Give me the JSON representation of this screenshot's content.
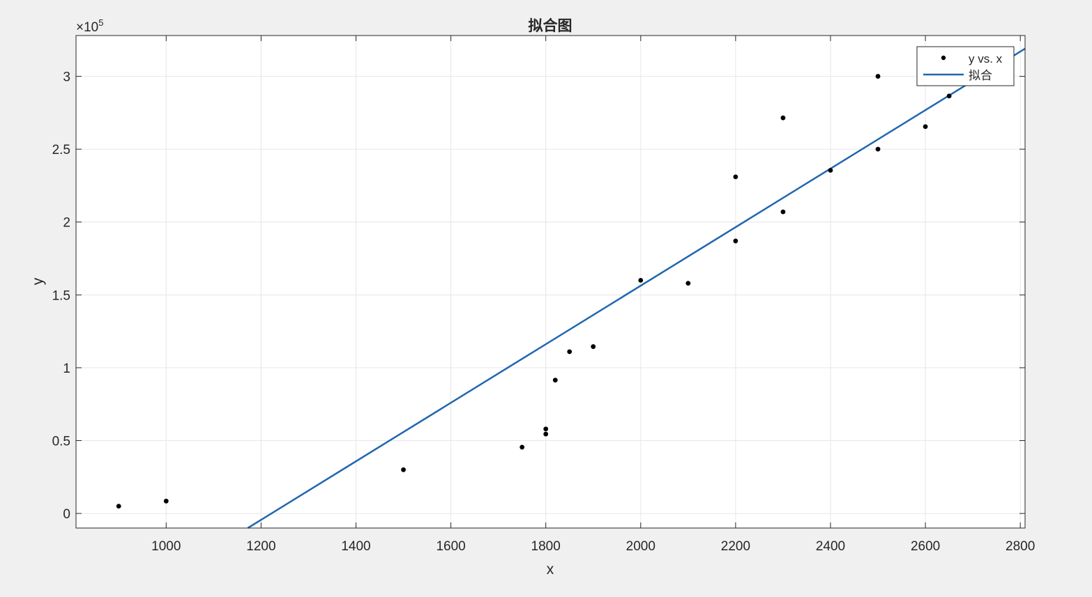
{
  "chart_data": {
    "type": "scatter",
    "title": "拟合图",
    "xlabel": "x",
    "ylabel": "y",
    "xlim": [
      810,
      2810
    ],
    "ylim": [
      -10000,
      328000
    ],
    "x_ticks": [
      1000,
      1200,
      1400,
      1600,
      1800,
      2000,
      2200,
      2400,
      2600,
      2800
    ],
    "y_ticks": [
      0,
      50000,
      100000,
      150000,
      200000,
      250000,
      300000
    ],
    "y_tick_labels": [
      "0",
      "0.5",
      "1",
      "1.5",
      "2",
      "2.5",
      "3"
    ],
    "y_exponent_label": "×10",
    "y_exponent_power": "5",
    "grid": true,
    "legend_position": "top-right",
    "series": [
      {
        "name": "y vs. x",
        "type": "scatter",
        "color": "#000000",
        "points": [
          {
            "x": 900,
            "y": 5000
          },
          {
            "x": 1000,
            "y": 8500
          },
          {
            "x": 1500,
            "y": 30000
          },
          {
            "x": 1750,
            "y": 45500
          },
          {
            "x": 1800,
            "y": 54500
          },
          {
            "x": 1800,
            "y": 58000
          },
          {
            "x": 1820,
            "y": 91500
          },
          {
            "x": 1850,
            "y": 111000
          },
          {
            "x": 1900,
            "y": 114500
          },
          {
            "x": 2000,
            "y": 160000
          },
          {
            "x": 2100,
            "y": 158000
          },
          {
            "x": 2200,
            "y": 187000
          },
          {
            "x": 2200,
            "y": 231000
          },
          {
            "x": 2300,
            "y": 207000
          },
          {
            "x": 2300,
            "y": 271500
          },
          {
            "x": 2400,
            "y": 235500
          },
          {
            "x": 2500,
            "y": 250000
          },
          {
            "x": 2500,
            "y": 300000
          },
          {
            "x": 2600,
            "y": 265500
          },
          {
            "x": 2650,
            "y": 286500
          }
        ]
      },
      {
        "name": "拟合",
        "type": "line",
        "color": "#1f66b0",
        "x": [
          1172,
          2810
        ],
        "y": [
          -10000,
          319000
        ]
      }
    ]
  }
}
